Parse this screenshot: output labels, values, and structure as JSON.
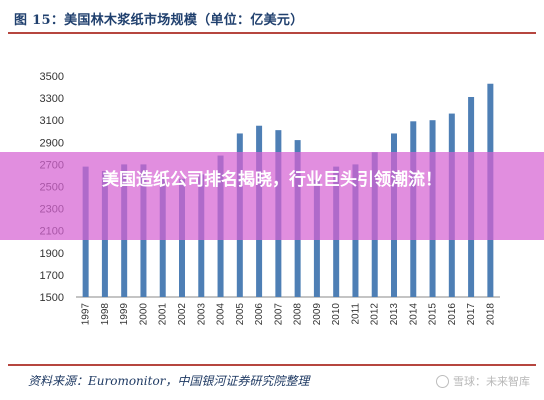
{
  "figure": {
    "title": "图 15：美国林木浆纸市场规模（单位：亿美元）",
    "source": "资料来源：Euromonitor，中国银河证券研究院整理"
  },
  "overlay": {
    "headline": "美国造纸公司排名揭晓，行业巨头引领潮流！"
  },
  "watermark": {
    "text": "雪球：未来智库",
    "icon": "snowball-icon"
  },
  "colors": {
    "bar": "#4e7fb5",
    "rule": "#b6463f",
    "overlay": "#d662d3"
  },
  "chart_data": {
    "type": "bar",
    "title": "",
    "xlabel": "",
    "ylabel": "",
    "categories": [
      "1997",
      "1998",
      "1999",
      "2000",
      "2001",
      "2002",
      "2003",
      "2004",
      "2005",
      "2006",
      "2007",
      "2008",
      "2009",
      "2010",
      "2011",
      "2012",
      "2013",
      "2014",
      "2015",
      "2016",
      "2017",
      "2018"
    ],
    "values": [
      2680,
      2640,
      2700,
      2700,
      2590,
      2570,
      2610,
      2780,
      2980,
      3050,
      3010,
      2920,
      2560,
      2680,
      2700,
      2810,
      2980,
      3090,
      3100,
      3160,
      3310,
      3430
    ],
    "yticks": [
      1500,
      1700,
      1900,
      2100,
      2300,
      2500,
      2700,
      2900,
      3100,
      3300,
      3500
    ],
    "ylim": [
      1500,
      3500
    ],
    "grid": false,
    "legend": "none"
  }
}
